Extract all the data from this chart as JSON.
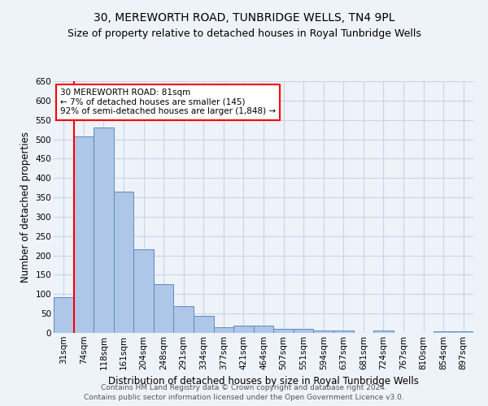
{
  "title": "30, MEREWORTH ROAD, TUNBRIDGE WELLS, TN4 9PL",
  "subtitle": "Size of property relative to detached houses in Royal Tunbridge Wells",
  "xlabel": "Distribution of detached houses by size in Royal Tunbridge Wells",
  "ylabel": "Number of detached properties",
  "footer1": "Contains HM Land Registry data © Crown copyright and database right 2024.",
  "footer2": "Contains public sector information licensed under the Open Government Licence v3.0.",
  "categories": [
    "31sqm",
    "74sqm",
    "118sqm",
    "161sqm",
    "204sqm",
    "248sqm",
    "291sqm",
    "334sqm",
    "377sqm",
    "421sqm",
    "464sqm",
    "507sqm",
    "551sqm",
    "594sqm",
    "637sqm",
    "681sqm",
    "724sqm",
    "767sqm",
    "810sqm",
    "854sqm",
    "897sqm"
  ],
  "values": [
    93,
    507,
    530,
    365,
    215,
    125,
    70,
    43,
    15,
    19,
    19,
    11,
    11,
    7,
    6,
    1,
    6,
    1,
    1,
    4,
    4
  ],
  "bar_color": "#aec6e8",
  "bar_edge_color": "#5b8db8",
  "annotation_box_text": "30 MEREWORTH ROAD: 81sqm\n← 7% of detached houses are smaller (145)\n92% of semi-detached houses are larger (1,848) →",
  "vline_color": "red",
  "vline_x": 0.5,
  "ylim": [
    0,
    650
  ],
  "yticks": [
    0,
    50,
    100,
    150,
    200,
    250,
    300,
    350,
    400,
    450,
    500,
    550,
    600,
    650
  ],
  "grid_color": "#c8d4e8",
  "background_color": "#eef2f9",
  "title_fontsize": 10,
  "subtitle_fontsize": 9,
  "xlabel_fontsize": 8.5,
  "ylabel_fontsize": 8.5,
  "tick_fontsize": 7.5,
  "footer_fontsize": 6.5
}
